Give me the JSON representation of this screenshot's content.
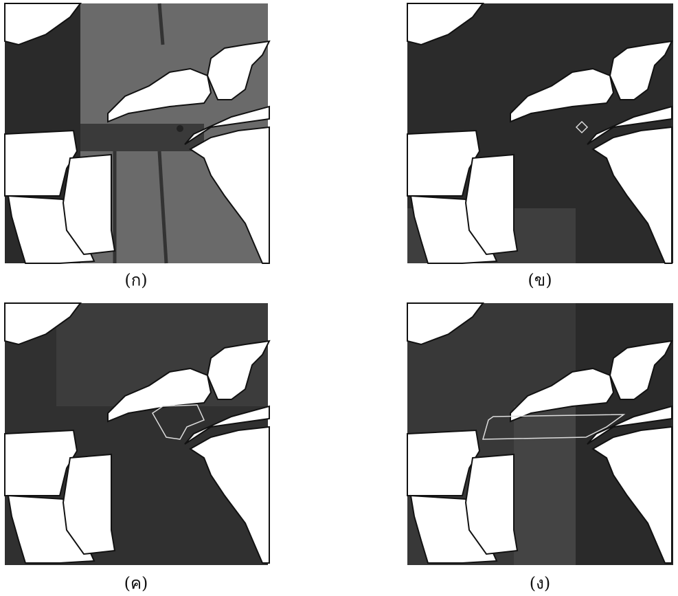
{
  "figure": {
    "panels": [
      {
        "label": "(ก)"
      },
      {
        "label": "(ข)"
      },
      {
        "label": "(ค)"
      },
      {
        "label": "(ง)"
      }
    ]
  }
}
